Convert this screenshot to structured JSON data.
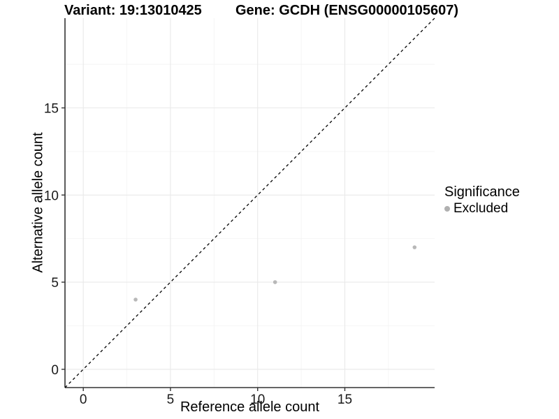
{
  "header": {
    "variant_title": "Variant: 19:13010425",
    "gene_title": "Gene: GCDH (ENSG00000105607)"
  },
  "chart_data": {
    "type": "scatter",
    "title_left": "Variant: 19:13010425",
    "title_right": "Gene: GCDH (ENSG00000105607)",
    "xlabel": "Reference allele count",
    "ylabel": "Alternative allele count",
    "xlim": [
      -1.05,
      20.15
    ],
    "ylim": [
      -1.05,
      20.15
    ],
    "xticks": [
      0,
      5,
      10,
      15
    ],
    "yticks": [
      0,
      5,
      10,
      15
    ],
    "xminor": [
      2.5,
      7.5,
      12.5,
      17.5
    ],
    "yminor": [
      2.5,
      7.5,
      12.5,
      17.5
    ],
    "grid": {
      "major": true,
      "minor": true
    },
    "series": [
      {
        "name": "Excluded",
        "points": [
          [
            3,
            4
          ],
          [
            11,
            5
          ],
          [
            19,
            7
          ]
        ]
      }
    ],
    "reference_line": {
      "type": "identity",
      "equation": "y = x",
      "style": "dashed"
    },
    "legend": {
      "title": "Significance",
      "position": "right",
      "items": [
        {
          "label": "Excluded"
        }
      ]
    },
    "colors": {
      "point": "#b8b8b8",
      "legend_point": "#b0b0b0",
      "reference_line": "#000000",
      "axis_line": "#333333",
      "tick_text": "#1a1a1a",
      "grid_major": "#e9e9e9",
      "grid_minor": "#f4f4f4"
    }
  }
}
